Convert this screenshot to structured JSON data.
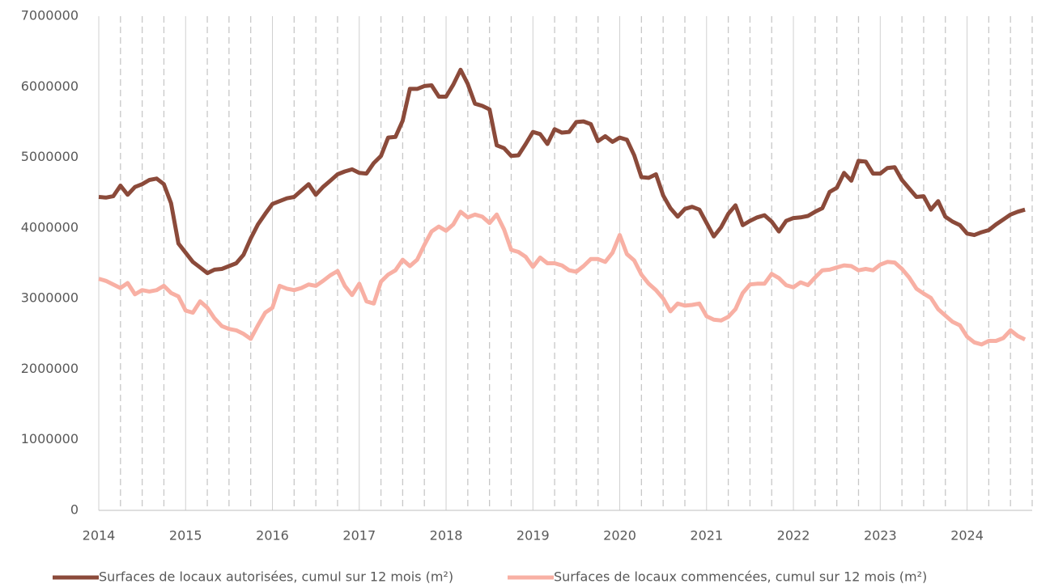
{
  "chart_data": {
    "type": "line",
    "x": [
      2014,
      2014.083,
      2014.167,
      2014.25,
      2014.333,
      2014.417,
      2014.5,
      2014.583,
      2014.667,
      2014.75,
      2014.833,
      2014.917,
      2015,
      2015.083,
      2015.167,
      2015.25,
      2015.333,
      2015.417,
      2015.5,
      2015.583,
      2015.667,
      2015.75,
      2015.833,
      2015.917,
      2016,
      2016.083,
      2016.167,
      2016.25,
      2016.333,
      2016.417,
      2016.5,
      2016.583,
      2016.667,
      2016.75,
      2016.833,
      2016.917,
      2017,
      2017.083,
      2017.167,
      2017.25,
      2017.333,
      2017.417,
      2017.5,
      2017.583,
      2017.667,
      2017.75,
      2017.833,
      2017.917,
      2018,
      2018.083,
      2018.167,
      2018.25,
      2018.333,
      2018.417,
      2018.5,
      2018.583,
      2018.667,
      2018.75,
      2018.833,
      2018.917,
      2019,
      2019.083,
      2019.167,
      2019.25,
      2019.333,
      2019.417,
      2019.5,
      2019.583,
      2019.667,
      2019.75,
      2019.833,
      2019.917,
      2020,
      2020.083,
      2020.167,
      2020.25,
      2020.333,
      2020.417,
      2020.5,
      2020.583,
      2020.667,
      2020.75,
      2020.833,
      2020.917,
      2021,
      2021.083,
      2021.167,
      2021.25,
      2021.333,
      2021.417,
      2021.5,
      2021.583,
      2021.667,
      2021.75,
      2021.833,
      2021.917,
      2022,
      2022.083,
      2022.167,
      2022.25,
      2022.333,
      2022.417,
      2022.5,
      2022.583,
      2022.667,
      2022.75,
      2022.833,
      2022.917,
      2023,
      2023.083,
      2023.167,
      2023.25,
      2023.333,
      2023.417,
      2023.5,
      2023.583,
      2023.667,
      2023.75,
      2023.833,
      2023.917,
      2024,
      2024.083,
      2024.167,
      2024.25,
      2024.333,
      2024.417,
      2024.5,
      2024.583,
      2024.667
    ],
    "series": [
      {
        "name": "Surfaces de locaux autorisées, cumul sur 12 mois (m²)",
        "color": "#8b4a3a",
        "values": [
          4440000,
          4430000,
          4450000,
          4600000,
          4470000,
          4580000,
          4620000,
          4680000,
          4700000,
          4620000,
          4350000,
          3780000,
          3650000,
          3520000,
          3440000,
          3360000,
          3410000,
          3420000,
          3460000,
          3500000,
          3620000,
          3850000,
          4050000,
          4200000,
          4340000,
          4380000,
          4420000,
          4440000,
          4530000,
          4620000,
          4470000,
          4580000,
          4670000,
          4760000,
          4800000,
          4830000,
          4780000,
          4770000,
          4920000,
          5020000,
          5280000,
          5290000,
          5520000,
          5970000,
          5970000,
          6010000,
          6020000,
          5860000,
          5860000,
          6030000,
          6240000,
          6040000,
          5760000,
          5730000,
          5680000,
          5170000,
          5130000,
          5020000,
          5030000,
          5190000,
          5360000,
          5330000,
          5190000,
          5400000,
          5350000,
          5360000,
          5500000,
          5510000,
          5470000,
          5230000,
          5300000,
          5220000,
          5280000,
          5250000,
          5030000,
          4720000,
          4710000,
          4760000,
          4460000,
          4280000,
          4160000,
          4270000,
          4300000,
          4260000,
          4070000,
          3880000,
          4010000,
          4200000,
          4320000,
          4040000,
          4100000,
          4150000,
          4180000,
          4090000,
          3950000,
          4100000,
          4140000,
          4150000,
          4170000,
          4230000,
          4280000,
          4510000,
          4570000,
          4780000,
          4670000,
          4950000,
          4940000,
          4770000,
          4770000,
          4850000,
          4860000,
          4680000,
          4560000,
          4440000,
          4450000,
          4260000,
          4380000,
          4160000,
          4090000,
          4040000,
          3920000,
          3900000,
          3940000,
          3970000,
          4050000,
          4120000,
          4190000,
          4230000,
          4260000
        ]
      },
      {
        "name": "Surfaces de locaux commencées, cumul sur 12 mois (m²)",
        "color": "#f8b0a4",
        "values": [
          3280000,
          3250000,
          3200000,
          3150000,
          3220000,
          3060000,
          3120000,
          3100000,
          3120000,
          3180000,
          3080000,
          3030000,
          2830000,
          2800000,
          2960000,
          2870000,
          2720000,
          2610000,
          2570000,
          2550000,
          2500000,
          2430000,
          2620000,
          2800000,
          2870000,
          3180000,
          3140000,
          3120000,
          3150000,
          3200000,
          3180000,
          3250000,
          3330000,
          3390000,
          3180000,
          3050000,
          3210000,
          2960000,
          2930000,
          3240000,
          3340000,
          3400000,
          3550000,
          3460000,
          3550000,
          3760000,
          3950000,
          4020000,
          3960000,
          4050000,
          4230000,
          4150000,
          4190000,
          4160000,
          4070000,
          4190000,
          3980000,
          3690000,
          3660000,
          3590000,
          3450000,
          3580000,
          3500000,
          3500000,
          3470000,
          3400000,
          3380000,
          3460000,
          3560000,
          3560000,
          3520000,
          3650000,
          3900000,
          3630000,
          3540000,
          3340000,
          3210000,
          3120000,
          3000000,
          2820000,
          2930000,
          2900000,
          2910000,
          2930000,
          2750000,
          2700000,
          2690000,
          2740000,
          2850000,
          3080000,
          3200000,
          3210000,
          3210000,
          3350000,
          3290000,
          3190000,
          3160000,
          3230000,
          3190000,
          3300000,
          3400000,
          3410000,
          3440000,
          3470000,
          3460000,
          3400000,
          3420000,
          3400000,
          3480000,
          3520000,
          3510000,
          3420000,
          3300000,
          3140000,
          3070000,
          3010000,
          2850000,
          2760000,
          2670000,
          2620000,
          2460000,
          2380000,
          2350000,
          2400000,
          2400000,
          2440000,
          2550000,
          2470000,
          2420000
        ]
      }
    ],
    "xlim": [
      2014,
      2024.75
    ],
    "xticks": [
      2014,
      2015,
      2016,
      2017,
      2018,
      2019,
      2020,
      2021,
      2022,
      2023,
      2024
    ],
    "x_minor_ticks": [
      2014.25,
      2014.5,
      2014.75,
      2015.25,
      2015.5,
      2015.75,
      2016.25,
      2016.5,
      2016.75,
      2017.25,
      2017.5,
      2017.75,
      2018.25,
      2018.5,
      2018.75,
      2019.25,
      2019.5,
      2019.75,
      2020.25,
      2020.5,
      2020.75,
      2021.25,
      2021.5,
      2021.75,
      2022.25,
      2022.5,
      2022.75,
      2023.25,
      2023.5,
      2023.75,
      2024.25,
      2024.5,
      2024.75
    ],
    "ylim": [
      0,
      7000000
    ],
    "yticks": [
      0,
      1000000,
      2000000,
      3000000,
      4000000,
      5000000,
      6000000,
      7000000
    ],
    "grid": "x",
    "legend": "bottom"
  }
}
